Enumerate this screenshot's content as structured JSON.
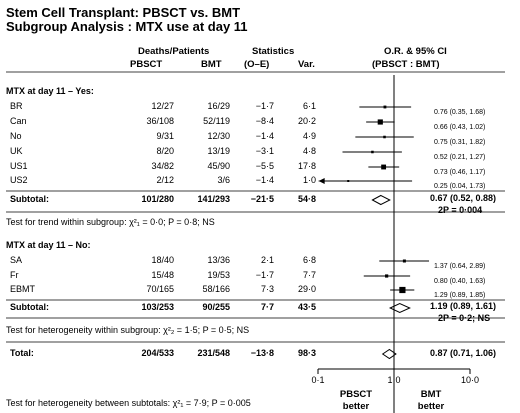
{
  "title_line1": "Stem Cell Transplant: PBSCT vs. BMT",
  "title_line2": "Subgroup Analysis : MTX use at day 11",
  "headers": {
    "deaths_patients": "Deaths/Patients",
    "pbsct": "PBSCT",
    "bmt": "BMT",
    "statistics": "Statistics",
    "o_e": "(O–E)",
    "var": "Var.",
    "or_ci": "O.R. & 95% CI",
    "pbsct_bmt": "(PBSCT : BMT)"
  },
  "sections": {
    "yes": "MTX at day 11 – Yes:",
    "no": "MTX at day 11 – No:"
  },
  "notes": {
    "trend": "Test for trend within subgroup: χ²₁ = 0·0; P = 0·8; NS",
    "heterogeneity_within": "Test for heterogeneity within subgroup: χ²₂ = 1·5; P = 0·5; NS",
    "heterogeneity_between": "Test for heterogeneity between subtotals: χ²₁ = 7·9; P = 0·005"
  },
  "axis": {
    "ticks": [
      "0·1",
      "1·0",
      "10·0"
    ],
    "left_label_1": "PBSCT",
    "left_label_2": "better",
    "right_label_1": "BMT",
    "right_label_2": "better"
  },
  "chart_data": {
    "type": "forest",
    "x_scale": "log",
    "xlim": [
      0.1,
      10
    ],
    "groups": [
      {
        "name": "MTX at day 11 – Yes:",
        "rows": [
          {
            "label": "BR",
            "pbsct": "12/27",
            "bmt": "16/29",
            "oe": "-1·7",
            "var": "6·1",
            "or": 0.76,
            "lo": 0.35,
            "hi": 1.68,
            "ci_text": "0.76 (0.35, 1.68)"
          },
          {
            "label": "Can",
            "pbsct": "36/108",
            "bmt": "52/119",
            "oe": "-8·4",
            "var": "20·2",
            "or": 0.66,
            "lo": 0.43,
            "hi": 1.02,
            "ci_text": "0.66 (0.43, 1.02)"
          },
          {
            "label": "No",
            "pbsct": "9/31",
            "bmt": "12/30",
            "oe": "-1·4",
            "var": "4·9",
            "or": 0.75,
            "lo": 0.31,
            "hi": 1.82,
            "ci_text": "0.75 (0.31, 1.82)"
          },
          {
            "label": "UK",
            "pbsct": "8/20",
            "bmt": "13/19",
            "oe": "-3·1",
            "var": "4·8",
            "or": 0.52,
            "lo": 0.21,
            "hi": 1.27,
            "ci_text": "0.52 (0.21, 1.27)"
          },
          {
            "label": "US1",
            "pbsct": "34/82",
            "bmt": "45/90",
            "oe": "-5·5",
            "var": "17·8",
            "or": 0.73,
            "lo": 0.46,
            "hi": 1.17,
            "ci_text": "0.73 (0.46, 1.17)"
          },
          {
            "label": "US2",
            "pbsct": "2/12",
            "bmt": "3/6",
            "oe": "-1·4",
            "var": "1·0",
            "or": 0.25,
            "lo": 0.04,
            "hi": 1.73,
            "ci_text": "0.25 (0.04, 1.73)"
          }
        ],
        "subtotal": {
          "label": "Subtotal:",
          "pbsct": "101/280",
          "bmt": "141/293",
          "oe": "-21·5",
          "var": "54·8",
          "or": 0.67,
          "lo": 0.52,
          "hi": 0.88,
          "ci_text": "0.67 (0.52, 0.88)",
          "p_text": "2P = 0·004"
        }
      },
      {
        "name": "MTX at day 11 – No:",
        "rows": [
          {
            "label": "SA",
            "pbsct": "18/40",
            "bmt": "13/36",
            "oe": "2·1",
            "var": "6·8",
            "or": 1.37,
            "lo": 0.64,
            "hi": 2.89,
            "ci_text": "1.37 (0.64, 2.89)"
          },
          {
            "label": "Fr",
            "pbsct": "15/48",
            "bmt": "19/53",
            "oe": "-1·7",
            "var": "7·7",
            "or": 0.8,
            "lo": 0.4,
            "hi": 1.63,
            "ci_text": "0.80 (0.40, 1.63)"
          },
          {
            "label": "EBMT",
            "pbsct": "70/165",
            "bmt": "58/166",
            "oe": "7·3",
            "var": "29·0",
            "or": 1.29,
            "lo": 0.89,
            "hi": 1.85,
            "ci_text": "1.29 (0.89, 1.85)"
          }
        ],
        "subtotal": {
          "label": "Subtotal:",
          "pbsct": "103/253",
          "bmt": "90/255",
          "oe": "7·7",
          "var": "43·5",
          "or": 1.19,
          "lo": 0.89,
          "hi": 1.61,
          "ci_text": "1.19 (0.89, 1.61)",
          "p_text": "2P = 0·2; NS"
        }
      }
    ],
    "total": {
      "label": "Total:",
      "pbsct": "204/533",
      "bmt": "231/548",
      "oe": "-13·8",
      "var": "98·3",
      "or": 0.87,
      "lo": 0.71,
      "hi": 1.06,
      "ci_text": "0.87 (0.71, 1.06)"
    }
  }
}
